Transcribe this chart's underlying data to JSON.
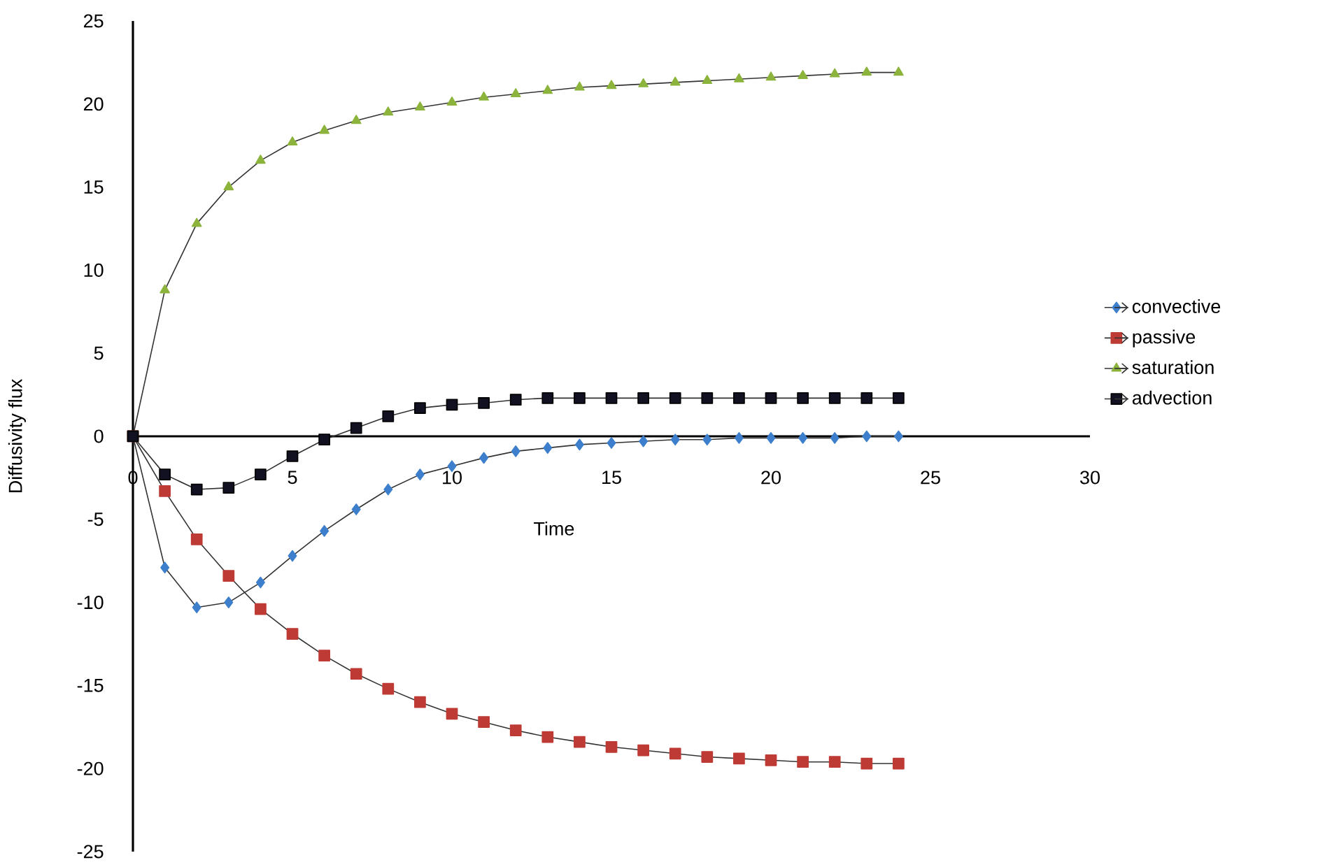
{
  "chart_data": {
    "type": "line",
    "xlabel": "Time",
    "ylabel": "Diffusivity flux",
    "x": [
      0,
      1,
      2,
      3,
      4,
      5,
      6,
      7,
      8,
      9,
      10,
      11,
      12,
      13,
      14,
      15,
      16,
      17,
      18,
      19,
      20,
      21,
      22,
      23,
      24
    ],
    "series": [
      {
        "name": "convective",
        "color": "#3d7fcc",
        "marker": "diamond",
        "values": [
          0,
          -7.9,
          -10.3,
          -10,
          -8.8,
          -7.2,
          -5.7,
          -4.4,
          -3.2,
          -2.3,
          -1.8,
          -1.3,
          -0.9,
          -0.7,
          -0.5,
          -0.4,
          -0.3,
          -0.2,
          -0.2,
          -0.1,
          -0.1,
          -0.1,
          -0.1,
          0,
          0
        ]
      },
      {
        "name": "passive",
        "color": "#be3a34",
        "marker": "square",
        "values": [
          0,
          -3.3,
          -6.2,
          -8.4,
          -10.4,
          -11.9,
          -13.2,
          -14.3,
          -15.2,
          -16,
          -16.7,
          -17.2,
          -17.7,
          -18.1,
          -18.4,
          -18.7,
          -18.9,
          -19.1,
          -19.3,
          -19.4,
          -19.5,
          -19.6,
          -19.6,
          -19.7,
          -19.7
        ]
      },
      {
        "name": "saturation",
        "color": "#8cb43c",
        "marker": "triangle",
        "values": [
          0,
          8.8,
          12.8,
          15,
          16.6,
          17.7,
          18.4,
          19,
          19.5,
          19.8,
          20.1,
          20.4,
          20.6,
          20.8,
          21,
          21.1,
          21.2,
          21.3,
          21.4,
          21.5,
          21.6,
          21.7,
          21.8,
          21.9,
          21.9
        ]
      },
      {
        "name": "advection",
        "color": "#111122",
        "marker": "square",
        "values": [
          0,
          -2.3,
          -3.2,
          -3.1,
          -2.3,
          -1.2,
          -0.2,
          0.5,
          1.2,
          1.7,
          1.9,
          2,
          2.2,
          2.3,
          2.3,
          2.3,
          2.3,
          2.3,
          2.3,
          2.3,
          2.3,
          2.3,
          2.3,
          2.3,
          2.3
        ]
      }
    ],
    "xlim": [
      0,
      30
    ],
    "xticks": [
      0,
      5,
      10,
      15,
      20,
      25,
      30
    ],
    "ylim": [
      -25,
      25
    ],
    "yticks": [
      -25,
      -20,
      -15,
      -10,
      -5,
      0,
      5,
      10,
      15,
      20,
      25
    ],
    "legend": "right",
    "line_style": "solid",
    "grid": false
  }
}
